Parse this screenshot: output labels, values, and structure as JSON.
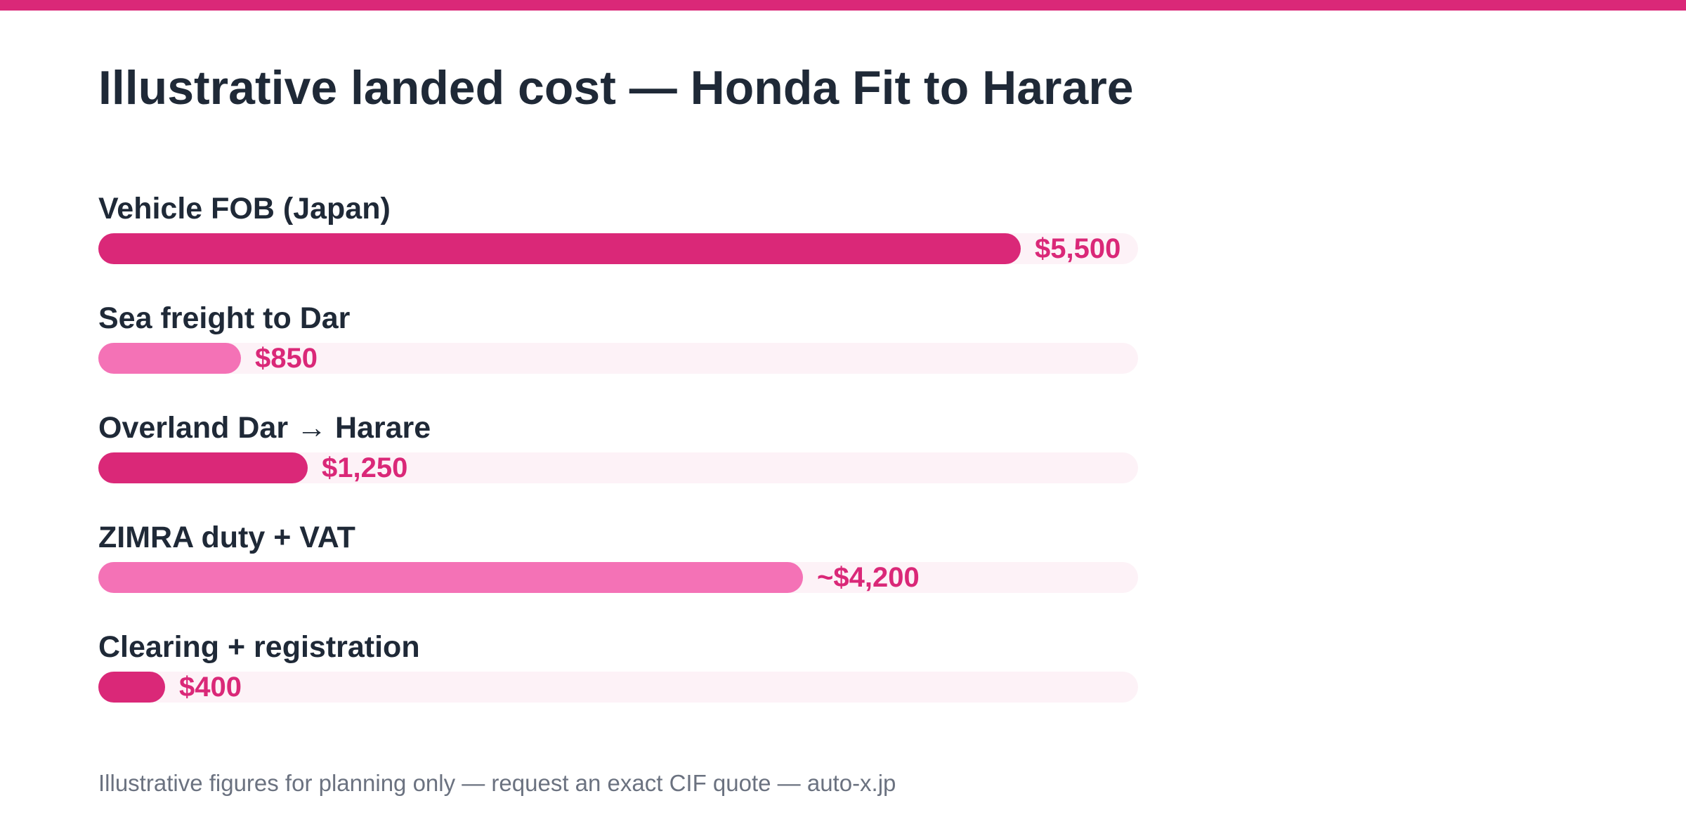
{
  "colors": {
    "accent": "#da2878",
    "accent_light": "#f472b6",
    "track": "#fdf2f7",
    "title_text": "#1f2937",
    "footnote_text": "#6b7280"
  },
  "chart_data": {
    "type": "bar",
    "orientation": "horizontal",
    "title": "Illustrative landed cost — Honda Fit to Harare",
    "categories": [
      "Vehicle FOB (Japan)",
      "Sea freight to Dar",
      "Overland Dar → Harare",
      "ZIMRA duty + VAT",
      "Clearing + registration"
    ],
    "values": [
      5500,
      850,
      1250,
      4200,
      400
    ],
    "value_labels": [
      "$5,500",
      "$850",
      "$1,250",
      "~$4,200",
      "$400"
    ],
    "bar_colors": [
      "#da2878",
      "#f472b6",
      "#da2878",
      "#f472b6",
      "#da2878"
    ],
    "xlim": [
      0,
      6200
    ],
    "xlabel": "",
    "ylabel": "",
    "grid": false,
    "legend": "none"
  },
  "footnote": "Illustrative figures for planning only — request an exact CIF quote — auto-x.jp"
}
